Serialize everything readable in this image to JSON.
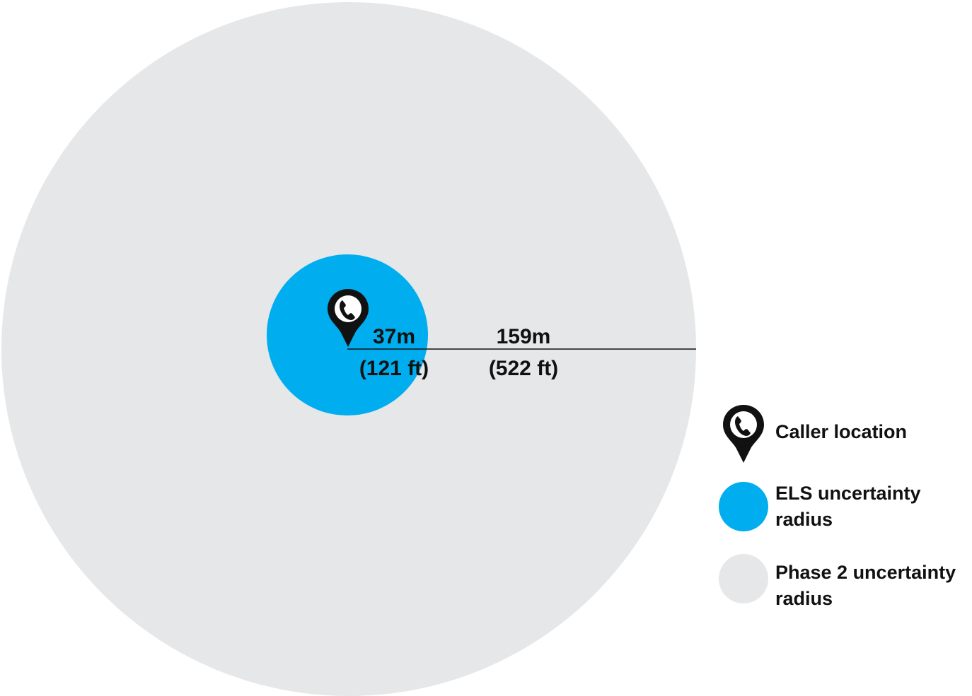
{
  "colors": {
    "phase2_fill": "#e6e7e8",
    "els_fill": "#00aeef",
    "pin": "#111111",
    "line": "#111111"
  },
  "radius_labels": {
    "els_m": "37m",
    "els_ft": "(121 ft)",
    "phase2_m": "159m",
    "phase2_ft": "(522 ft)"
  },
  "legend": {
    "caller": {
      "label": "Caller location",
      "icon": "phone-location-pin-icon"
    },
    "els": {
      "label": "ELS uncertainty radius"
    },
    "phase2": {
      "label": "Phase 2 uncertainty radius"
    }
  }
}
